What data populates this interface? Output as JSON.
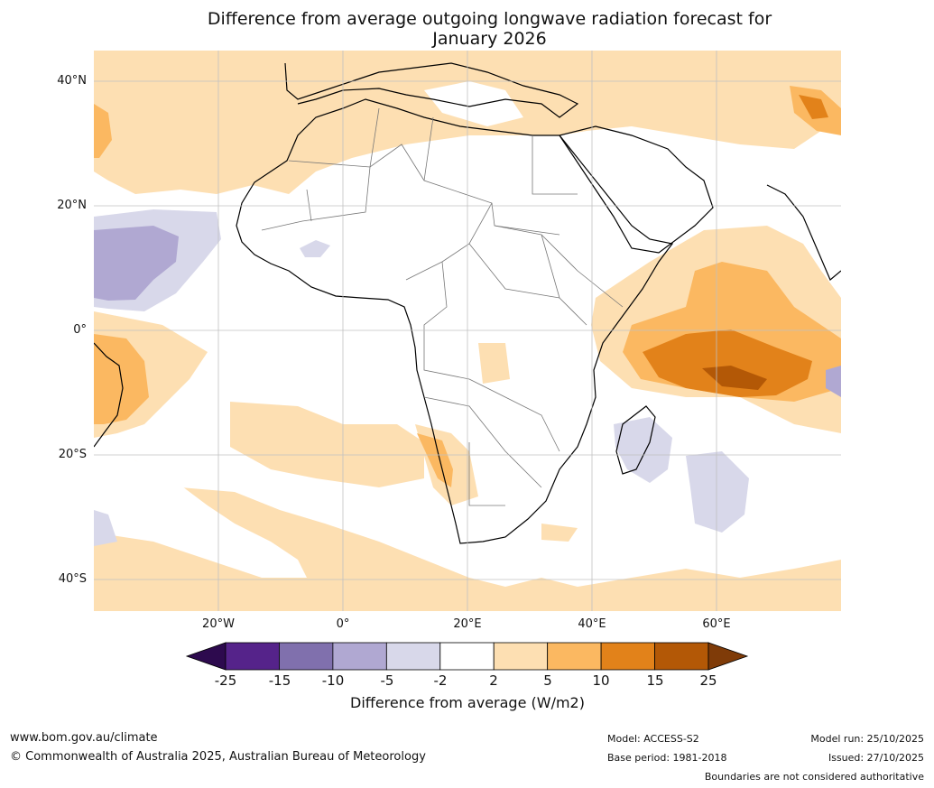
{
  "title": {
    "line1": "Difference from average outgoing longwave radiation forecast for",
    "line2": "January 2026"
  },
  "axes": {
    "lat_labels": [
      "40°N",
      "20°N",
      "0°",
      "20°S",
      "40°S"
    ],
    "lon_labels": [
      "20°W",
      "0°",
      "20°E",
      "40°E",
      "60°E"
    ]
  },
  "colorbar": {
    "label": "Difference from average (W/m2)",
    "ticks": [
      "-25",
      "-15",
      "-10",
      "-5",
      "-2",
      "2",
      "5",
      "10",
      "15",
      "25"
    ],
    "colors": {
      "below_min": "#2d0a4e",
      "c1": "#55238a",
      "c2": "#8070ad",
      "c3": "#b0a8d2",
      "c4": "#d8d8ea",
      "neutral": "#ffffff",
      "w1": "#fddfb2",
      "w2": "#fbb861",
      "w3": "#e2821a",
      "w4": "#b35806",
      "above_max": "#7f3b08"
    }
  },
  "footer": {
    "website": "www.bom.gov.au/climate",
    "copyright": "© Commonwealth of Australia 2025, Australian Bureau of Meteorology",
    "model": "Model: ACCESS-S2",
    "base_period": "Base period: 1981-2018",
    "model_run": "Model run: 25/10/2025",
    "issued": "Issued: 27/10/2025",
    "disclaimer": "Boundaries are not considered authoritative"
  }
}
